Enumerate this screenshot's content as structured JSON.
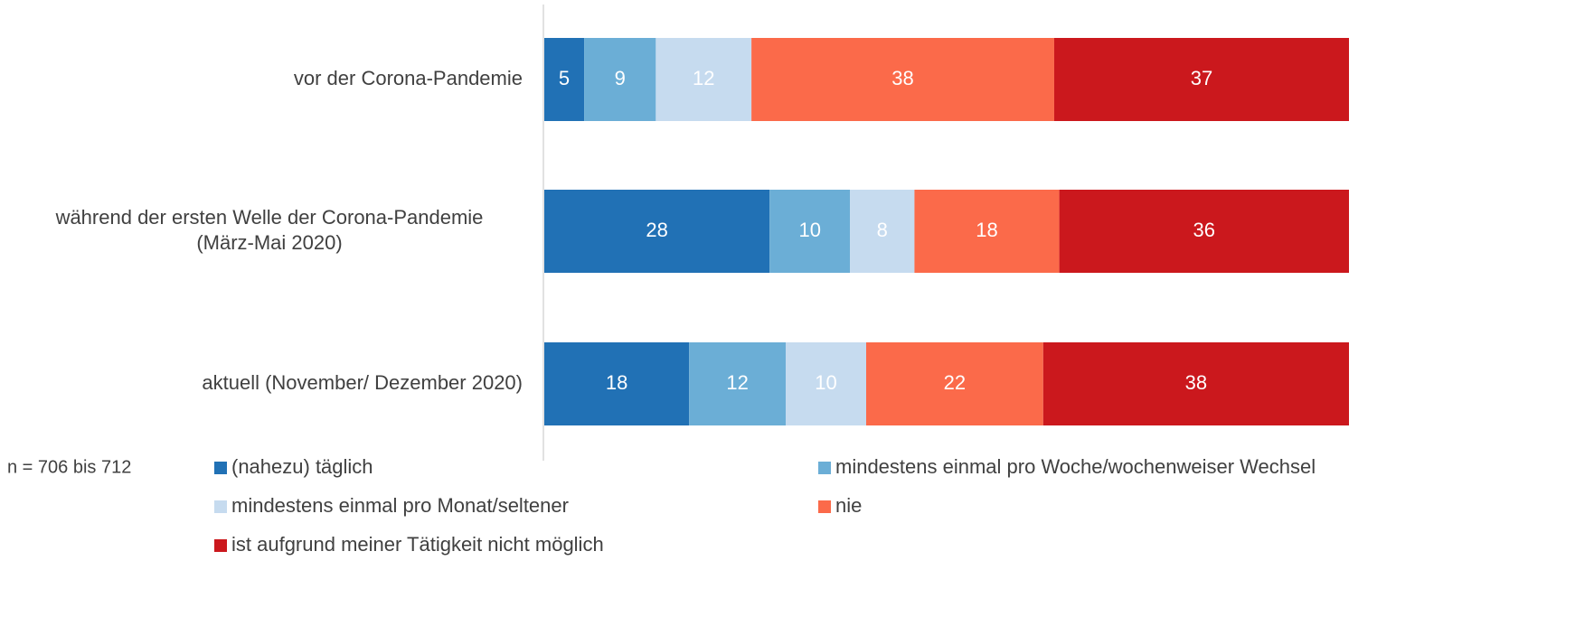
{
  "chart_data": {
    "type": "stacked-bar-horizontal",
    "note": "n = 706  bis 712",
    "categories": [
      [
        "vor der Corona-Pandemie"
      ],
      [
        "während der ersten Welle der Corona-Pandemie",
        "(März-Mai 2020)"
      ],
      [
        "aktuell (November/ Dezember 2020)"
      ]
    ],
    "series": [
      {
        "name": "(nahezu) täglich",
        "color": "#2171b5",
        "values": [
          5,
          28,
          18
        ]
      },
      {
        "name": "mindestens einmal pro Woche/wochenweiser Wechsel",
        "color": "#6baed6",
        "values": [
          9,
          10,
          12
        ]
      },
      {
        "name": "mindestens einmal pro Monat/seltener",
        "color": "#c6dbef",
        "values": [
          12,
          8,
          10
        ]
      },
      {
        "name": "nie",
        "color": "#fb6a4a",
        "values": [
          38,
          18,
          22
        ]
      },
      {
        "name": "ist aufgrund meiner Tätigkeit nicht möglich",
        "color": "#cb181d",
        "values": [
          37,
          36,
          38
        ]
      }
    ]
  }
}
